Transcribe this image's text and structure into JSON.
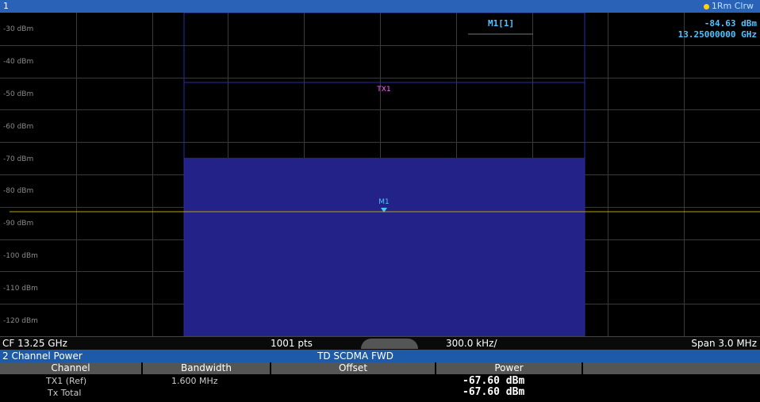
{
  "window": {
    "number": "1",
    "trace_info": "1Rm Clrw"
  },
  "marker_readout": {
    "label": "M1[1]",
    "level": "-84.63 dBm",
    "frequency": "13.25000000 GHz"
  },
  "y_axis": {
    "ticks": [
      "-30 dBm",
      "-40 dBm",
      "-50 dBm",
      "-60 dBm",
      "-70 dBm",
      "-80 dBm",
      "-90 dBm",
      "-100 dBm",
      "-110 dBm",
      "-120 dBm"
    ]
  },
  "annotations": {
    "channel": "TX1",
    "marker": "M1"
  },
  "status": {
    "cf": "CF 13.25 GHz",
    "points": "1001 pts",
    "div": "300.0 kHz/",
    "span": "Span 3.0 MHz"
  },
  "result_panel": {
    "title": "2 Channel Power",
    "standard": "TD SCDMA FWD",
    "columns": [
      "Channel",
      "Bandwidth",
      "Offset",
      "Power"
    ],
    "rows": [
      {
        "channel": "TX1 (Ref)",
        "bandwidth": "1.600 MHz",
        "offset": "",
        "power": "-67.60 dBm"
      },
      {
        "channel": "Tx Total",
        "bandwidth": "",
        "offset": "",
        "power": "-67.60 dBm"
      }
    ]
  },
  "colors": {
    "title_bar": "#2a62b8",
    "channel_bar": "#222288",
    "display_line": "#b8a400",
    "grid": "#3a3a3a",
    "marker": "#4fc3ff",
    "tx_label": "#ff66ff"
  }
}
